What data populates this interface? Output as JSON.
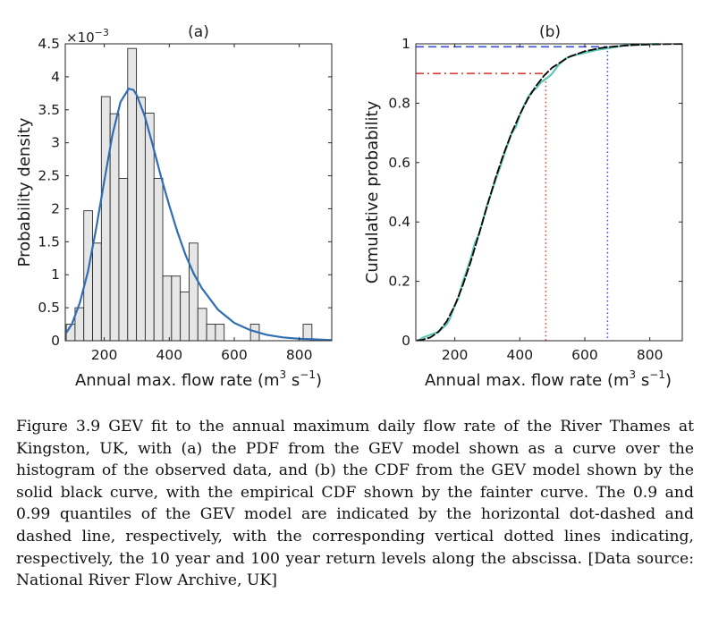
{
  "chart_data": [
    {
      "panel_label": "(a)",
      "type": "bar",
      "ylabel": "Probability density",
      "xlabel_parts": [
        "Annual max. flow rate (m",
        "3",
        " s",
        "−1",
        ")"
      ],
      "xlim": [
        80,
        900
      ],
      "ylim": [
        0,
        4.5
      ],
      "y_multiplier": "×10",
      "y_multiplier_exp": "−3",
      "xticks": [
        200,
        400,
        600,
        800
      ],
      "xtick_labels": [
        "200",
        "400",
        "600",
        "800"
      ],
      "yticks": [
        0,
        0.5,
        1,
        1.5,
        2,
        2.5,
        3,
        3.5,
        4,
        4.5
      ],
      "ytick_labels": [
        "0",
        "0.5",
        "1",
        "1.5",
        "2",
        "2.5",
        "3",
        "3.5",
        "4",
        "4.5"
      ],
      "bin_edges": [
        83,
        110,
        137,
        164,
        191,
        218,
        245,
        272,
        299,
        326,
        353,
        380,
        407,
        434,
        461,
        488,
        515,
        542,
        569,
        596,
        623,
        650,
        677,
        704,
        731,
        758,
        785,
        812,
        839
      ],
      "values": [
        0.25,
        0.5,
        1.97,
        1.48,
        3.7,
        3.44,
        2.46,
        4.43,
        3.69,
        3.45,
        2.46,
        0.98,
        0.98,
        0.74,
        1.48,
        0.49,
        0.25,
        0.25,
        0,
        0,
        0,
        0.25,
        0,
        0,
        0,
        0,
        0,
        0.25
      ],
      "bar_color": "#e6e6e6",
      "fit_curve": {
        "name": "GEV PDF",
        "color": "#2f6db5",
        "x": [
          83,
          100,
          125,
          150,
          175,
          200,
          225,
          250,
          275,
          290,
          300,
          325,
          350,
          375,
          400,
          425,
          450,
          475,
          500,
          550,
          600,
          650,
          700,
          750,
          800,
          850,
          900
        ],
        "y": [
          0.12,
          0.25,
          0.58,
          1.05,
          1.7,
          2.42,
          3.12,
          3.62,
          3.82,
          3.8,
          3.72,
          3.4,
          2.95,
          2.48,
          2.05,
          1.65,
          1.3,
          1.02,
          0.8,
          0.47,
          0.27,
          0.16,
          0.09,
          0.05,
          0.03,
          0.02,
          0.01
        ]
      }
    },
    {
      "panel_label": "(b)",
      "type": "line",
      "ylabel": "Cumulative probability",
      "xlabel_parts": [
        "Annual max. flow rate (m",
        "3",
        " s",
        "−1",
        ")"
      ],
      "xlim": [
        80,
        900
      ],
      "ylim": [
        0,
        1
      ],
      "xticks": [
        200,
        400,
        600,
        800
      ],
      "xtick_labels": [
        "200",
        "400",
        "600",
        "800"
      ],
      "yticks": [
        0,
        0.2,
        0.4,
        0.6,
        0.8,
        1
      ],
      "ytick_labels": [
        "0",
        "0.2",
        "0.4",
        "0.6",
        "0.8",
        "1"
      ],
      "series": [
        {
          "role": "GEV CDF",
          "color": "#000000",
          "x": [
            83,
            100,
            125,
            150,
            175,
            200,
            225,
            250,
            275,
            300,
            325,
            350,
            375,
            400,
            425,
            450,
            475,
            500,
            550,
            600,
            650,
            700,
            750,
            800,
            850,
            900
          ],
          "y": [
            0.001,
            0.003,
            0.011,
            0.03,
            0.065,
            0.118,
            0.188,
            0.27,
            0.362,
            0.456,
            0.546,
            0.628,
            0.7,
            0.762,
            0.815,
            0.858,
            0.893,
            0.92,
            0.955,
            0.975,
            0.986,
            0.992,
            0.996,
            0.998,
            0.999,
            0.9995
          ]
        },
        {
          "role": "Empirical CDF",
          "color": "#5cc6b4",
          "x": [
            88,
            100,
            125,
            150,
            175,
            185,
            200,
            210,
            225,
            235,
            250,
            262,
            275,
            285,
            300,
            310,
            325,
            338,
            350,
            362,
            375,
            388,
            400,
            412,
            425,
            438,
            450,
            465,
            478,
            490,
            500,
            520,
            540,
            560,
            600,
            640,
            700,
            720,
            830
          ],
          "y": [
            0,
            0.01,
            0.02,
            0.03,
            0.055,
            0.075,
            0.12,
            0.14,
            0.2,
            0.23,
            0.28,
            0.33,
            0.36,
            0.4,
            0.46,
            0.49,
            0.54,
            0.58,
            0.62,
            0.66,
            0.7,
            0.72,
            0.76,
            0.79,
            0.82,
            0.84,
            0.85,
            0.87,
            0.88,
            0.89,
            0.9,
            0.93,
            0.95,
            0.96,
            0.97,
            0.98,
            0.99,
            0.995,
            1.0
          ]
        }
      ],
      "quantile_lines": [
        {
          "p": 0.9,
          "x": 480,
          "hstyle": "dash-dot",
          "vstyle": "dotted",
          "color": "#e0403a"
        },
        {
          "p": 0.99,
          "x": 670,
          "hstyle": "dashed",
          "vstyle": "dotted",
          "color": "#3a4fd6"
        }
      ]
    }
  ],
  "caption": "Figure 3.9  GEV fit to the annual maximum daily flow rate of the River Thames at Kingston, UK, with (a) the PDF from the GEV model shown as a curve over the histogram of the observed data, and (b) the CDF from the GEV model shown by the solid black curve, with the empirical CDF shown by the fainter curve. The 0.9 and 0.99 quantiles of the GEV model are indicated by the horizontal dot-dashed and dashed line, respectively, with the corresponding vertical dotted lines indicating, respectively, the 10 year and 100 year return levels along the abscissa. [Data source: National River Flow Archive, UK]"
}
